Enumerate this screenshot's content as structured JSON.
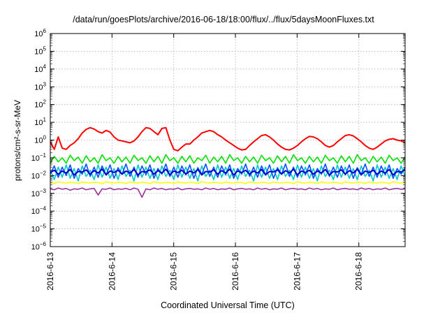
{
  "chart_data": {
    "type": "line",
    "title": "/data/run/goesPlots/archive/2016-06-18/18:00/flux/../flux/5daysMoonFluxes.txt",
    "xlabel": "Coordinated Universal Time (UTC)",
    "ylabel": "protons/cm²-s-sr-MeV",
    "yscale": "log",
    "ylim": [
      1e-06,
      1000000.0
    ],
    "y_ticks": [
      -6,
      -5,
      -4,
      -3,
      -2,
      -1,
      0,
      1,
      2,
      3,
      4,
      5,
      6
    ],
    "x_range": [
      "2016-06-13",
      "2016-06-18 18:00"
    ],
    "x_ticks": [
      "2016-6-13",
      "2016-6-14",
      "2016-6-15",
      "2016-6-16",
      "2016-6-17",
      "2016-6-18"
    ],
    "grid": true,
    "legend": "none",
    "series": [
      {
        "color": "#ff0000",
        "values": [
          0.8,
          0.3,
          1.5,
          0.35,
          0.3,
          0.5,
          0.7,
          1.2,
          2.5,
          4.0,
          5.0,
          4.2,
          3.0,
          2.5,
          3.5,
          2.8,
          1.5,
          1.0,
          0.9,
          0.8,
          0.7,
          0.9,
          1.5,
          3.0,
          5.0,
          4.5,
          3.0,
          2.0,
          4.5,
          5.0,
          1.0,
          0.3,
          0.25,
          0.4,
          0.6,
          0.6,
          1.0,
          1.5,
          2.5,
          3.0,
          3.5,
          3.0,
          2.0,
          1.5,
          1.0,
          0.7,
          0.5,
          0.35,
          0.28,
          0.3,
          0.5,
          0.8,
          1.2,
          1.8,
          2.0,
          1.5,
          1.0,
          0.6,
          0.4,
          0.3,
          0.28,
          0.35,
          0.5,
          0.8,
          1.2,
          1.6,
          1.5,
          1.2,
          0.8,
          0.5,
          0.4,
          0.5,
          0.8,
          1.2,
          1.8,
          2.0,
          1.7,
          1.2,
          0.8,
          0.5,
          0.35,
          0.3,
          0.4,
          0.6,
          0.9,
          1.1,
          1.2,
          1.0,
          0.9,
          0.7
        ]
      },
      {
        "color": "#00e000",
        "values": [
          0.05,
          0.12,
          0.06,
          0.1,
          0.05,
          0.14,
          0.07,
          0.11,
          0.05,
          0.13,
          0.06,
          0.1,
          0.05,
          0.15,
          0.07,
          0.1,
          0.05,
          0.12,
          0.06,
          0.11,
          0.05,
          0.14,
          0.07,
          0.1,
          0.05,
          0.13,
          0.06,
          0.12,
          0.05,
          0.15,
          0.07,
          0.1,
          0.05,
          0.12,
          0.06,
          0.13,
          0.05,
          0.1,
          0.07,
          0.14,
          0.05,
          0.11,
          0.06,
          0.12,
          0.05,
          0.15,
          0.07,
          0.1,
          0.05,
          0.12,
          0.06,
          0.11,
          0.05,
          0.14,
          0.07,
          0.1,
          0.05,
          0.13,
          0.06,
          0.12,
          0.05,
          0.15,
          0.07,
          0.1,
          0.05,
          0.12,
          0.06,
          0.11,
          0.05,
          0.14,
          0.07,
          0.1,
          0.05,
          0.13,
          0.06,
          0.12,
          0.05,
          0.15,
          0.07,
          0.1,
          0.05,
          0.12,
          0.06,
          0.11,
          0.05,
          0.14,
          0.07,
          0.1,
          0.05,
          0.12
        ]
      },
      {
        "color": "#00c8c8",
        "values": [
          0.02,
          0.006,
          0.03,
          0.008,
          0.04,
          0.007,
          0.025,
          0.005,
          0.035,
          0.009,
          0.02,
          0.006,
          0.04,
          0.008,
          0.03,
          0.007,
          0.025,
          0.006,
          0.035,
          0.009,
          0.02,
          0.005,
          0.04,
          0.008,
          0.03,
          0.007,
          0.025,
          0.006,
          0.035,
          0.009,
          0.02,
          0.006,
          0.04,
          0.008,
          0.03,
          0.007,
          0.025,
          0.005,
          0.035,
          0.009,
          0.02,
          0.006,
          0.04,
          0.008,
          0.03,
          0.007,
          0.025,
          0.006,
          0.035,
          0.009,
          0.02,
          0.005,
          0.04,
          0.008,
          0.03,
          0.007,
          0.025,
          0.006,
          0.035,
          0.009,
          0.02,
          0.006,
          0.04,
          0.008,
          0.03,
          0.007,
          0.025,
          0.005,
          0.035,
          0.009,
          0.02,
          0.006,
          0.04,
          0.008,
          0.03,
          0.007,
          0.025,
          0.006,
          0.035,
          0.009,
          0.02,
          0.005,
          0.04,
          0.008,
          0.03,
          0.007,
          0.025,
          0.006,
          0.035,
          0.009
        ]
      },
      {
        "color": "#0050ff",
        "values": [
          0.012,
          0.035,
          0.008,
          0.03,
          0.01,
          0.04,
          0.007,
          0.025,
          0.012,
          0.045,
          0.009,
          0.03,
          0.008,
          0.035,
          0.011,
          0.04,
          0.007,
          0.028,
          0.012,
          0.045,
          0.009,
          0.03,
          0.008,
          0.035,
          0.011,
          0.04,
          0.007,
          0.025,
          0.012,
          0.045,
          0.009,
          0.03,
          0.008,
          0.035,
          0.011,
          0.04,
          0.007,
          0.028,
          0.012,
          0.045,
          0.009,
          0.03,
          0.008,
          0.035,
          0.011,
          0.04,
          0.007,
          0.025,
          0.012,
          0.045,
          0.009,
          0.03,
          0.008,
          0.035,
          0.011,
          0.04,
          0.007,
          0.028,
          0.012,
          0.045,
          0.009,
          0.03,
          0.008,
          0.035,
          0.011,
          0.04,
          0.007,
          0.025,
          0.012,
          0.045,
          0.009,
          0.03,
          0.008,
          0.035,
          0.011,
          0.04,
          0.007,
          0.028,
          0.012,
          0.045,
          0.009,
          0.03,
          0.008,
          0.035,
          0.011,
          0.04,
          0.007,
          0.025,
          0.012,
          0.03
        ]
      },
      {
        "color": "#0000c8",
        "values": [
          0.015,
          0.02,
          0.012,
          0.018,
          0.014,
          0.022,
          0.011,
          0.017,
          0.016,
          0.021,
          0.012,
          0.019,
          0.014,
          0.023,
          0.011,
          0.018,
          0.015,
          0.02,
          0.012,
          0.018,
          0.014,
          0.022,
          0.011,
          0.017,
          0.016,
          0.021,
          0.012,
          0.019,
          0.014,
          0.023,
          0.011,
          0.018,
          0.015,
          0.02,
          0.012,
          0.018,
          0.014,
          0.022,
          0.011,
          0.017,
          0.016,
          0.021,
          0.012,
          0.019,
          0.014,
          0.023,
          0.011,
          0.018,
          0.015,
          0.02,
          0.012,
          0.018,
          0.014,
          0.022,
          0.011,
          0.017,
          0.016,
          0.021,
          0.012,
          0.019,
          0.014,
          0.023,
          0.011,
          0.018,
          0.015,
          0.02,
          0.012,
          0.018,
          0.014,
          0.022,
          0.011,
          0.017,
          0.016,
          0.021,
          0.012,
          0.019,
          0.014,
          0.023,
          0.011,
          0.018,
          0.015,
          0.02,
          0.012,
          0.018,
          0.014,
          0.022,
          0.011,
          0.017,
          0.016,
          0.021
        ]
      },
      {
        "color": "#ffff00",
        "values": [
          0.004,
          0.0035,
          0.0045,
          0.004,
          0.0038,
          0.0042,
          0.004,
          0.0036,
          0.0044,
          0.004,
          0.0038,
          0.0042,
          0.004,
          0.0035,
          0.0045,
          0.004,
          0.0038,
          0.0042,
          0.004,
          0.0036,
          0.0044,
          0.004,
          0.0038,
          0.0042,
          0.004,
          0.0035,
          0.0045,
          0.004,
          0.0038,
          0.0042,
          0.004,
          0.0036,
          0.0044,
          0.004,
          0.0038,
          0.0042,
          0.004,
          0.0035,
          0.0045,
          0.004,
          0.0038,
          0.0042,
          0.004,
          0.0036,
          0.0044,
          0.004,
          0.0038,
          0.0042,
          0.004,
          0.0035,
          0.0045,
          0.004,
          0.0038,
          0.0042,
          0.004,
          0.0036,
          0.0044,
          0.004,
          0.0038,
          0.0042,
          0.004,
          0.0035,
          0.0045,
          0.004,
          0.0038,
          0.0042,
          0.004,
          0.0036,
          0.0044,
          0.004,
          0.0038,
          0.0042,
          0.004,
          0.0035,
          0.0045,
          0.004,
          0.0038,
          0.0042,
          0.004,
          0.0036,
          0.0044,
          0.004,
          0.0038,
          0.0042,
          0.004,
          0.0035,
          0.0045,
          0.004,
          0.0038,
          0.004
        ]
      },
      {
        "color": "#993399",
        "values": [
          0.0018,
          0.0016,
          0.002,
          0.0017,
          0.0019,
          0.0015,
          0.0018,
          0.0017,
          0.002,
          0.0016,
          0.0018,
          0.0019,
          0.0008,
          0.0018,
          0.0017,
          0.002,
          0.0016,
          0.0018,
          0.0017,
          0.0019,
          0.0016,
          0.002,
          0.0017,
          0.0006,
          0.0018,
          0.0016,
          0.002,
          0.0017,
          0.0019,
          0.0016,
          0.0018,
          0.0017,
          0.002,
          0.0016,
          0.0018,
          0.0019,
          0.0017,
          0.0018,
          0.0016,
          0.002,
          0.0017,
          0.0019,
          0.0016,
          0.0018,
          0.0017,
          0.002,
          0.0016,
          0.0018,
          0.0019,
          0.0017,
          0.0018,
          0.0016,
          0.002,
          0.0017,
          0.0019,
          0.0016,
          0.0018,
          0.0017,
          0.002,
          0.0016,
          0.0018,
          0.0019,
          0.0017,
          0.0018,
          0.0016,
          0.002,
          0.0017,
          0.0019,
          0.0016,
          0.0018,
          0.0017,
          0.002,
          0.0016,
          0.0018,
          0.0019,
          0.0017,
          0.0018,
          0.0016,
          0.002,
          0.0017,
          0.0019,
          0.0016,
          0.0018,
          0.0017,
          0.002,
          0.0016,
          0.0018,
          0.0019,
          0.0017,
          0.0018
        ]
      }
    ]
  }
}
